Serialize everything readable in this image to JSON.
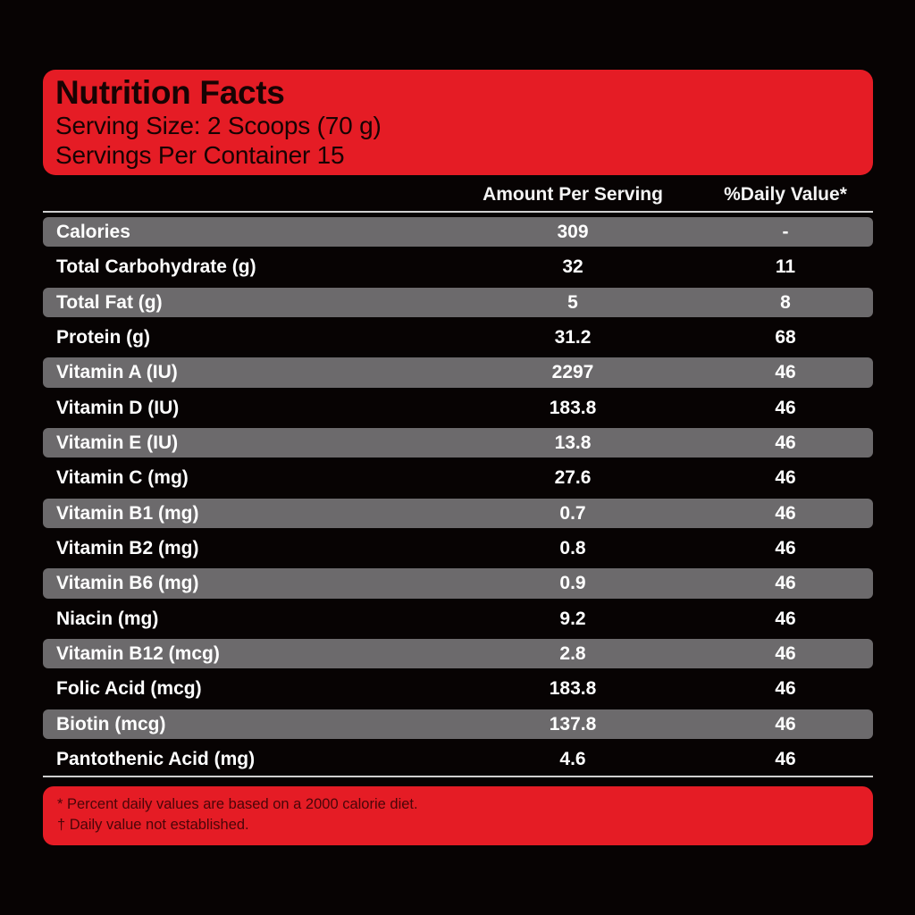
{
  "header": {
    "title": "Nutrition Facts",
    "serving_size": "Serving Size: 2 Scoops (70 g)",
    "servings_per_container": "Servings Per Container 15"
  },
  "columns": {
    "amount": "Amount Per Serving",
    "daily_value": "%Daily Value*"
  },
  "rows": [
    {
      "name": "Calories",
      "amount": "309",
      "dv": "-"
    },
    {
      "name": "Total Carbohydrate (g)",
      "amount": "32",
      "dv": "11"
    },
    {
      "name": "Total Fat (g)",
      "amount": "5",
      "dv": "8"
    },
    {
      "name": "Protein (g)",
      "amount": "31.2",
      "dv": "68"
    },
    {
      "name": "Vitamin A (IU)",
      "amount": "2297",
      "dv": "46"
    },
    {
      "name": "Vitamin D (IU)",
      "amount": "183.8",
      "dv": "46"
    },
    {
      "name": "Vitamin E (IU)",
      "amount": "13.8",
      "dv": "46"
    },
    {
      "name": "Vitamin C (mg)",
      "amount": "27.6",
      "dv": "46"
    },
    {
      "name": "Vitamin B1 (mg)",
      "amount": "0.7",
      "dv": "46"
    },
    {
      "name": "Vitamin B2 (mg)",
      "amount": "0.8",
      "dv": "46"
    },
    {
      "name": "Vitamin B6 (mg)",
      "amount": "0.9",
      "dv": "46"
    },
    {
      "name": "Niacin (mg)",
      "amount": "9.2",
      "dv": "46"
    },
    {
      "name": "Vitamin B12 (mcg)",
      "amount": "2.8",
      "dv": "46"
    },
    {
      "name": "Folic Acid (mcg)",
      "amount": "183.8",
      "dv": "46"
    },
    {
      "name": "Biotin (mcg)",
      "amount": "137.8",
      "dv": "46"
    },
    {
      "name": "Pantothenic Acid (mg)",
      "amount": "4.6",
      "dv": "46"
    }
  ],
  "footer": {
    "note1": "* Percent daily values are based on a 2000 calorie diet.",
    "note2": "† Daily value not established."
  },
  "colors": {
    "background": "#070303",
    "panel_red": "#e51c25",
    "row_shade": "#6c6a6c",
    "text": "#ffffff"
  }
}
